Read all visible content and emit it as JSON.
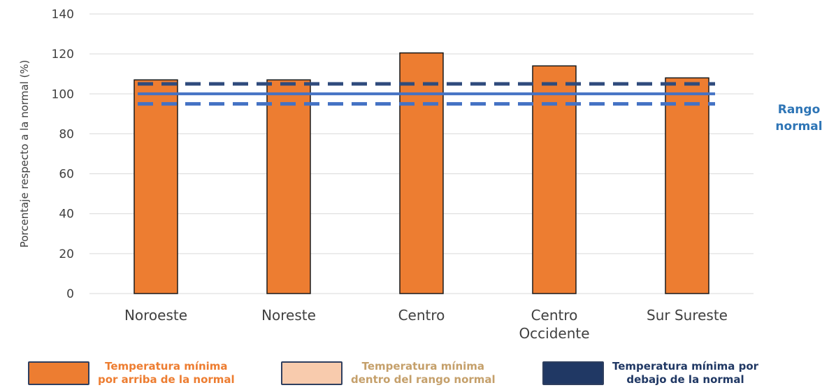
{
  "chart_data": {
    "type": "bar",
    "title": "",
    "xlabel": "",
    "ylabel": "Porcentaje respecto a la normal (%)",
    "ylim": [
      0,
      140
    ],
    "yticks": [
      0,
      20,
      40,
      60,
      80,
      100,
      120,
      140
    ],
    "grid": true,
    "categories": [
      {
        "lines": [
          "Noroeste"
        ]
      },
      {
        "lines": [
          "Noreste"
        ]
      },
      {
        "lines": [
          "Centro"
        ]
      },
      {
        "lines": [
          "Centro",
          "Occidente"
        ]
      },
      {
        "lines": [
          "Sur Sureste"
        ]
      }
    ],
    "values": [
      107,
      107,
      120.5,
      114,
      108
    ],
    "bar_color": "#ed7d31",
    "bar_border": "#1a1a1a",
    "reference_lines": [
      {
        "value": 105,
        "style": "dashed",
        "color": "#2f4b7c"
      },
      {
        "value": 100,
        "style": "solid",
        "color": "#4472c4"
      },
      {
        "value": 95,
        "style": "dashed",
        "color": "#4472c4"
      }
    ],
    "side_label": [
      "Rango",
      "normal"
    ],
    "legend": [
      {
        "label_lines": [
          "Temperatura mínima",
          "por arriba de la normal"
        ],
        "fill": "#ed7d31",
        "text_color": "#ed7d31"
      },
      {
        "label_lines": [
          "Temperatura mínima",
          "dentro del rango normal"
        ],
        "fill": "#f8cbad",
        "text_color": "#c5a06b"
      },
      {
        "label_lines": [
          "Temperatura mínima por",
          "debajo de la normal"
        ],
        "fill": "#203864",
        "text_color": "#203864"
      }
    ]
  }
}
